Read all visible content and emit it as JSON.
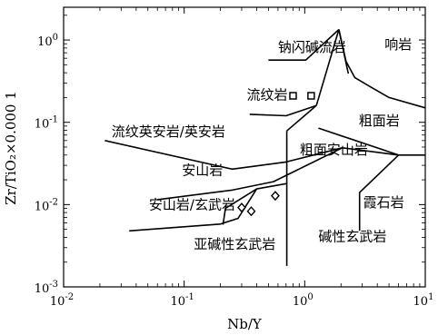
{
  "chart_data": {
    "type": "scatter",
    "title": "",
    "xlabel": "Nb/Y",
    "ylabel": "Zr/TiO₂×0.000 1",
    "xscale": "log",
    "yscale": "log",
    "xlim": [
      0.01,
      10
    ],
    "ylim": [
      0.001,
      2.5
    ],
    "grid": false,
    "x_ticks": [
      {
        "value": 0.01,
        "base": "10",
        "exp": "-2"
      },
      {
        "value": 0.1,
        "base": "10",
        "exp": "-1"
      },
      {
        "value": 1,
        "base": "10",
        "exp": "0"
      },
      {
        "value": 10,
        "base": "10",
        "exp": "1"
      }
    ],
    "y_ticks": [
      {
        "value": 0.001,
        "base": "10",
        "exp": "-3"
      },
      {
        "value": 0.01,
        "base": "10",
        "exp": "-2"
      },
      {
        "value": 0.1,
        "base": "10",
        "exp": "-1"
      },
      {
        "value": 1,
        "base": "10",
        "exp": "0"
      }
    ],
    "field_labels": [
      {
        "text": "钠闪碱流岩",
        "x": 0.6,
        "y": 0.72
      },
      {
        "text": "响岩",
        "x": 4.6,
        "y": 0.78
      },
      {
        "text": "流纹岩",
        "x": 0.33,
        "y": 0.19
      },
      {
        "text": "粗面岩",
        "x": 2.8,
        "y": 0.092
      },
      {
        "text": "流纹英安岩/英安岩",
        "x": 0.025,
        "y": 0.068
      },
      {
        "text": "粗面安山岩",
        "x": 0.91,
        "y": 0.041
      },
      {
        "text": "安山岩",
        "x": 0.096,
        "y": 0.023
      },
      {
        "text": "安山岩/玄武岩",
        "x": 0.051,
        "y": 0.0088
      },
      {
        "text": "霞石岩",
        "x": 3.05,
        "y": 0.0094
      },
      {
        "text": "碱性玄武岩",
        "x": 1.3,
        "y": 0.0036
      },
      {
        "text": "亚碱性玄武岩",
        "x": 0.12,
        "y": 0.0029
      }
    ],
    "boundaries": [
      [
        [
          0.022,
          0.06
        ],
        [
          0.25,
          0.027
        ],
        [
          0.7,
          0.033
        ],
        [
          2.05,
          0.049
        ],
        [
          6.0,
          0.04
        ],
        [
          10,
          0.04
        ]
      ],
      [
        [
          0.06,
          0.0115
        ],
        [
          0.25,
          0.015
        ],
        [
          0.55,
          0.019
        ],
        [
          2.05,
          0.049
        ]
      ],
      [
        [
          0.035,
          0.0048
        ],
        [
          0.2,
          0.0058
        ],
        [
          0.28,
          0.0068
        ],
        [
          0.4,
          0.0155
        ]
      ],
      [
        [
          0.21,
          0.0057
        ],
        [
          0.22,
          0.009
        ],
        [
          0.4,
          0.0155
        ],
        [
          0.71,
          0.018
        ]
      ],
      [
        [
          0.71,
          0.0018
        ],
        [
          0.71,
          0.0785
        ]
      ],
      [
        [
          0.71,
          0.0785
        ],
        [
          1.25,
          0.16
        ]
      ],
      [
        [
          0.35,
          0.125
        ],
        [
          0.7,
          0.12
        ],
        [
          1.25,
          0.16
        ]
      ],
      [
        [
          0.5,
          0.57
        ],
        [
          1.02,
          0.57
        ],
        [
          1.92,
          1.34
        ]
      ],
      [
        [
          1.25,
          0.16
        ],
        [
          1.92,
          1.34
        ]
      ],
      [
        [
          1.3,
          0.085
        ],
        [
          6.0,
          0.04
        ]
      ],
      [
        [
          1.92,
          1.34
        ],
        [
          2.2,
          0.55
        ],
        [
          2.6,
          0.35
        ],
        [
          3.5,
          0.27
        ],
        [
          5.0,
          0.2
        ],
        [
          10,
          0.15
        ]
      ],
      [
        [
          1.92,
          1.34
        ],
        [
          2.3,
          0.39
        ]
      ],
      [
        [
          2.85,
          0.0048
        ],
        [
          2.85,
          0.014
        ],
        [
          6.0,
          0.04
        ]
      ]
    ],
    "series": [
      {
        "marker": "square",
        "points": [
          {
            "x": 0.8,
            "y": 0.21
          },
          {
            "x": 1.13,
            "y": 0.21
          }
        ]
      },
      {
        "marker": "diamond",
        "points": [
          {
            "x": 0.3,
            "y": 0.0092
          },
          {
            "x": 0.36,
            "y": 0.0083
          },
          {
            "x": 0.57,
            "y": 0.0128
          }
        ]
      }
    ]
  }
}
